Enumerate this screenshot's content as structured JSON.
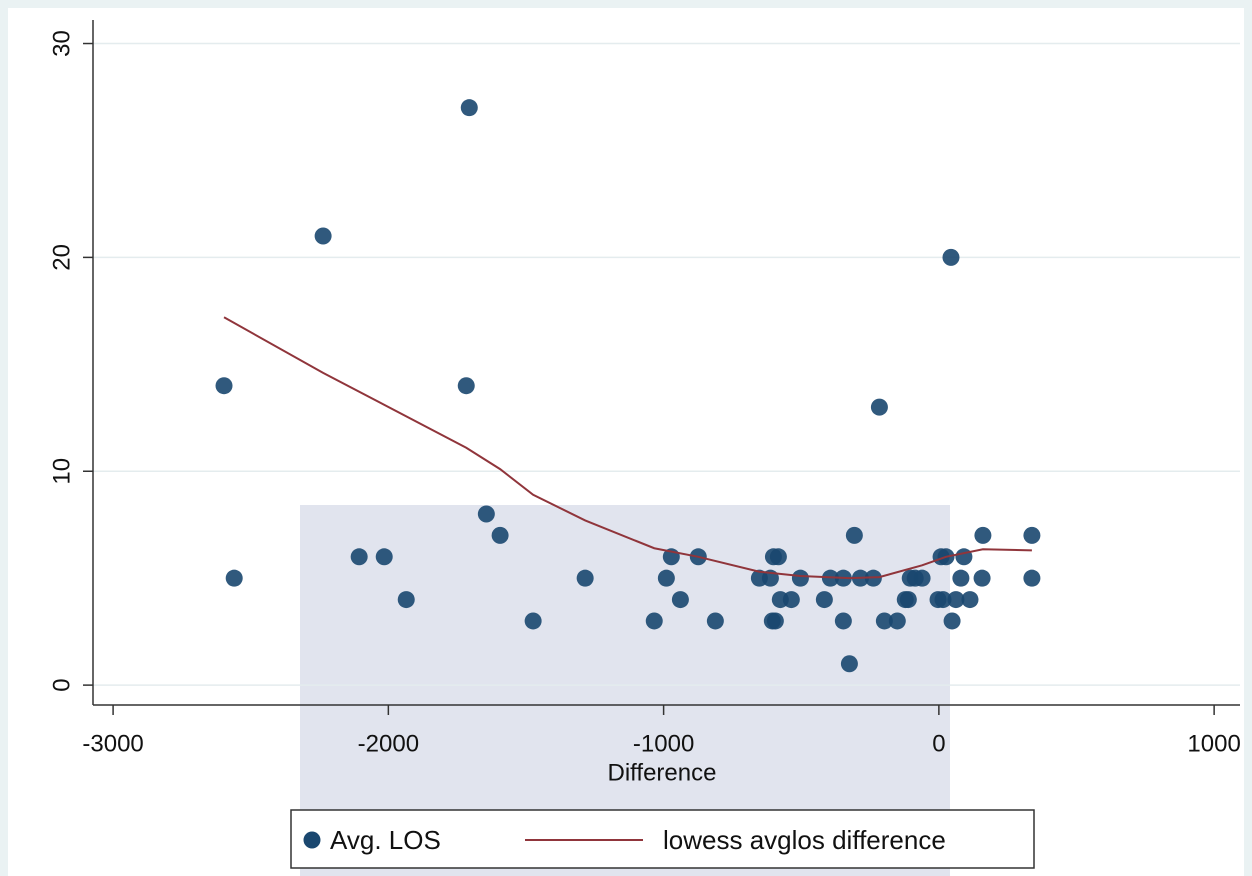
{
  "chart_data": {
    "type": "scatter",
    "x_label": "Difference",
    "xlim": [
      -3073,
      1094
    ],
    "xticks": [
      -3000,
      -2000,
      -1000,
      0,
      1000
    ],
    "ylim": [
      -0.93,
      31.1
    ],
    "yticks": [
      0,
      10,
      20,
      30
    ],
    "grid": true,
    "legend": "bottom",
    "series": [
      {
        "name": "Avg. LOS",
        "type": "scatter",
        "color": "#1a476f",
        "x": [
          -2597,
          -2560,
          -2237,
          -1706,
          -1717,
          -2106,
          -2015,
          -1935,
          -1644,
          -1594,
          -1474,
          -1285,
          -1034,
          -990,
          -972,
          -939,
          -874,
          -812,
          -652,
          -612,
          -605,
          -594,
          -601,
          -583,
          -576,
          -536,
          -503,
          -416,
          -394,
          -347,
          -347,
          -325,
          -307,
          -285,
          -238,
          -216,
          -198,
          -151,
          -122,
          -111,
          -104,
          -86,
          -61,
          -3,
          15,
          8,
          26,
          44,
          48,
          62,
          80,
          91,
          113,
          157,
          160,
          338,
          338
        ],
        "values": [
          14,
          5,
          21,
          27,
          14,
          6,
          6,
          4,
          8,
          7,
          3,
          5,
          3,
          5,
          6,
          4,
          6,
          3,
          5,
          5,
          3,
          3,
          6,
          6,
          4,
          4,
          5,
          4,
          5,
          5,
          3,
          1,
          7,
          5,
          5,
          13,
          3,
          3,
          4,
          4,
          5,
          5,
          5,
          4,
          4,
          6,
          6,
          20,
          3,
          4,
          5,
          6,
          4,
          5,
          7,
          7,
          5
        ]
      },
      {
        "name": "lowess avglos difference",
        "type": "line",
        "color": "#90353b",
        "x": [
          -2597,
          -2237,
          -1717,
          -1594,
          -1474,
          -1285,
          -1034,
          -874,
          -652,
          -503,
          -325,
          -216,
          -61,
          26,
          160,
          338
        ],
        "values": [
          17.2,
          14.6,
          11.1,
          10.1,
          8.9,
          7.7,
          6.4,
          6.0,
          5.3,
          5.1,
          5.0,
          5.05,
          5.6,
          6.0,
          6.35,
          6.3
        ]
      }
    ]
  }
}
